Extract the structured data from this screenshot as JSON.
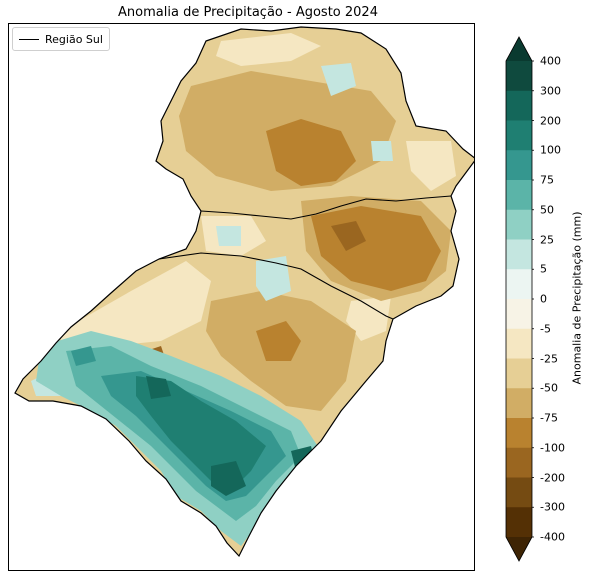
{
  "title": "Anomalia de Precipitação - Agosto 2024",
  "legend": {
    "label": "Região Sul"
  },
  "colorbar": {
    "label": "Anomalia de Precipitação (mm)",
    "ticks": [
      "400",
      "300",
      "200",
      "100",
      "75",
      "50",
      "25",
      "5",
      "0",
      "-5",
      "-25",
      "-50",
      "-75",
      "-100",
      "-200",
      "-300",
      "-400"
    ],
    "bins": [
      {
        "from": 300,
        "to": 400,
        "color": "#0f4a3e"
      },
      {
        "from": 200,
        "to": 300,
        "color": "#14675a"
      },
      {
        "from": 100,
        "to": 200,
        "color": "#1f7f72"
      },
      {
        "from": 75,
        "to": 100,
        "color": "#35978f"
      },
      {
        "from": 50,
        "to": 75,
        "color": "#5bb4a8"
      },
      {
        "from": 25,
        "to": 50,
        "color": "#8fd0c4"
      },
      {
        "from": 5,
        "to": 25,
        "color": "#c4e6e0"
      },
      {
        "from": 0,
        "to": 5,
        "color": "#ecf5f2"
      },
      {
        "from": -5,
        "to": 0,
        "color": "#f7f3e6"
      },
      {
        "from": -25,
        "to": -5,
        "color": "#f5e7c2"
      },
      {
        "from": -50,
        "to": -25,
        "color": "#e6cf95"
      },
      {
        "from": -75,
        "to": -50,
        "color": "#d1ad65"
      },
      {
        "from": -100,
        "to": -75,
        "color": "#b9822f"
      },
      {
        "from": -200,
        "to": -100,
        "color": "#9a6620"
      },
      {
        "from": -300,
        "to": -200,
        "color": "#754b12"
      },
      {
        "from": -400,
        "to": -300,
        "color": "#543005"
      }
    ],
    "extend_top_color": "#0a3a30",
    "extend_bottom_color": "#3e2404"
  }
}
